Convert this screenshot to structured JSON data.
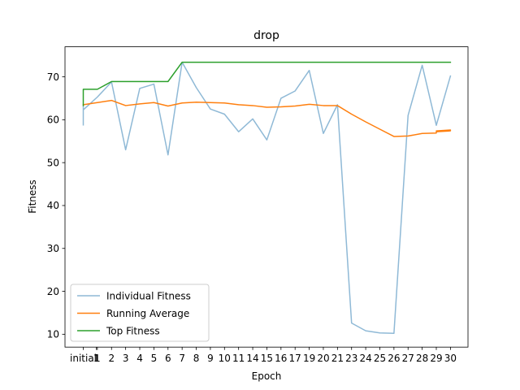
{
  "chart_data": {
    "type": "line",
    "title": "drop",
    "xlabel": "Epoch",
    "ylabel": "Fitness",
    "x_tick_labels": [
      "initial",
      "1",
      "1",
      "2",
      "3",
      "4",
      "5",
      "6",
      "7",
      "8",
      "9",
      "10",
      "11",
      "14",
      "15",
      "16",
      "17",
      "19",
      "20",
      "21",
      "23",
      "24",
      "25",
      "26",
      "27",
      "28",
      "29",
      "30"
    ],
    "y_ticks": [
      10,
      20,
      30,
      40,
      50,
      60,
      70
    ],
    "ylim": [
      7,
      77
    ],
    "grid": false,
    "legend_position": "lower left",
    "series": [
      {
        "name": "Individual Fitness",
        "color": "#8fb9d6",
        "points": [
          [
            0,
            58.8
          ],
          [
            0,
            63.2
          ],
          [
            0,
            62.3
          ],
          [
            1,
            65.3
          ],
          [
            2,
            68.8
          ],
          [
            3,
            53.0
          ],
          [
            4,
            67.3
          ],
          [
            5,
            68.3
          ],
          [
            6,
            51.8
          ],
          [
            7,
            73.4
          ],
          [
            8,
            67.5
          ],
          [
            9,
            62.5
          ],
          [
            10,
            61.3
          ],
          [
            11,
            57.2
          ],
          [
            12,
            60.2
          ],
          [
            13,
            55.3
          ],
          [
            14,
            65.0
          ],
          [
            15,
            66.7
          ],
          [
            16,
            71.5
          ],
          [
            17,
            56.8
          ],
          [
            18,
            63.5
          ],
          [
            19,
            12.6
          ],
          [
            20,
            10.8
          ],
          [
            21,
            10.3
          ],
          [
            22,
            10.2
          ],
          [
            23,
            61.0
          ],
          [
            24,
            72.7
          ],
          [
            25,
            58.7
          ],
          [
            26,
            70.2
          ]
        ]
      },
      {
        "name": "Running Average",
        "color": "#ff7f0e",
        "points": [
          [
            0,
            63.5
          ],
          [
            1,
            64.0
          ],
          [
            2,
            64.5
          ],
          [
            3,
            63.3
          ],
          [
            4,
            63.7
          ],
          [
            5,
            64.0
          ],
          [
            6,
            63.2
          ],
          [
            7,
            63.9
          ],
          [
            8,
            64.1
          ],
          [
            9,
            64.0
          ],
          [
            10,
            63.9
          ],
          [
            11,
            63.5
          ],
          [
            12,
            63.3
          ],
          [
            13,
            62.9
          ],
          [
            14,
            63.0
          ],
          [
            15,
            63.2
          ],
          [
            16,
            63.6
          ],
          [
            17,
            63.3
          ],
          [
            18,
            63.3
          ],
          [
            19,
            61.3
          ],
          [
            20,
            59.5
          ],
          [
            21,
            57.8
          ],
          [
            22,
            56.1
          ],
          [
            23,
            56.2
          ],
          [
            24,
            56.8
          ],
          [
            25,
            56.9
          ],
          [
            25,
            57.2
          ],
          [
            26,
            57.4
          ],
          [
            26,
            57.6
          ],
          [
            25,
            57.4
          ],
          [
            26,
            57.5
          ]
        ]
      },
      {
        "name": "Top Fitness",
        "color": "#2ca02c",
        "points": [
          [
            0,
            63.3
          ],
          [
            0,
            67.1
          ],
          [
            1,
            67.1
          ],
          [
            2,
            68.9
          ],
          [
            3,
            68.9
          ],
          [
            4,
            68.9
          ],
          [
            5,
            68.9
          ],
          [
            6,
            68.9
          ],
          [
            7,
            73.4
          ],
          [
            8,
            73.4
          ],
          [
            9,
            73.4
          ],
          [
            10,
            73.4
          ],
          [
            11,
            73.4
          ],
          [
            12,
            73.4
          ],
          [
            13,
            73.4
          ],
          [
            14,
            73.4
          ],
          [
            15,
            73.4
          ],
          [
            16,
            73.4
          ],
          [
            17,
            73.4
          ],
          [
            18,
            73.4
          ],
          [
            19,
            73.4
          ],
          [
            20,
            73.4
          ],
          [
            21,
            73.4
          ],
          [
            22,
            73.4
          ],
          [
            23,
            73.4
          ],
          [
            24,
            73.4
          ],
          [
            25,
            73.4
          ],
          [
            26,
            73.4
          ]
        ]
      }
    ]
  }
}
